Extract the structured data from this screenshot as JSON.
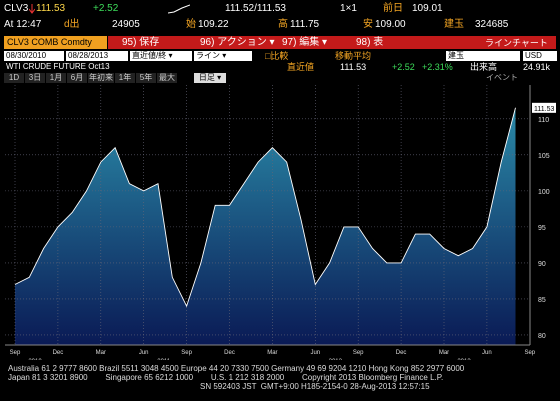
{
  "header": {
    "ticker": "CLV3",
    "last": "111.53",
    "change": "+2.52",
    "bid_ask": "111.52/111.53",
    "size": "1×1",
    "prev_label": "前日",
    "prev": "109.01",
    "time": "At 12:47",
    "vol_label": "d出",
    "volume": "24905",
    "open_label": "始",
    "open": "109.22",
    "high_label": "高",
    "high": "111.75",
    "low_label": "安",
    "low": "109.00",
    "oi_label": "建玉",
    "oi": "324685"
  },
  "toolbar": {
    "security": "CLV3 COMB Comdty",
    "menu": [
      "95) 保存",
      "96) アクション ▾",
      "97) 編集 ▾",
      "98) 表"
    ],
    "chart_kind": "ラインチャート"
  },
  "controls": {
    "start": "08/30/2010",
    "end": "08/28/2013",
    "field": "直近値/終 ▾",
    "style": "ライン ▾",
    "compare": "□比較",
    "ma": "移動平均",
    "oi": "建玉",
    "currency": "USD"
  },
  "legend": {
    "name": "WTI CRUDE FUTURE Oct13",
    "field": "直近値",
    "last": "111.53",
    "change": "+2.52",
    "pct": "+2.31%",
    "vol_label": "出来高",
    "vol": "24.91k"
  },
  "periods": {
    "buttons": [
      "1D",
      "3日",
      "1月",
      "6月",
      "年初来",
      "1年",
      "5年",
      "最大"
    ],
    "freq": "日足 ▾",
    "events": "イベント"
  },
  "chart_data": {
    "type": "area",
    "x": [
      "2010-09",
      "2010-10",
      "2010-11",
      "2010-12",
      "2011-01",
      "2011-02",
      "2011-03",
      "2011-04",
      "2011-05",
      "2011-06",
      "2011-07",
      "2011-08",
      "2011-09",
      "2011-10",
      "2011-11",
      "2011-12",
      "2012-01",
      "2012-02",
      "2012-03",
      "2012-04",
      "2012-05",
      "2012-06",
      "2012-07",
      "2012-08",
      "2012-09",
      "2012-10",
      "2012-11",
      "2012-12",
      "2013-01",
      "2013-02",
      "2013-03",
      "2013-04",
      "2013-05",
      "2013-06",
      "2013-07",
      "2013-08"
    ],
    "series": [
      {
        "name": "WTI CRUDE FUTURE Oct13",
        "color": "#ffffff",
        "values": [
          87,
          88,
          92,
          95,
          97,
          100,
          104,
          106,
          101,
          100,
          101,
          88,
          84,
          90,
          98,
          98,
          101,
          104,
          106,
          104,
          96,
          87,
          90,
          95,
          95,
          92,
          90,
          90,
          94,
          94,
          92,
          91,
          92,
          95,
          104,
          111.53
        ]
      }
    ],
    "ylim": [
      78.6,
      114.7
    ],
    "yticks": [
      80,
      85,
      90,
      95,
      100,
      105,
      110
    ],
    "grid": true,
    "xticks": [
      {
        "value": "2010-09",
        "label": "Sep"
      },
      {
        "value": "2010-12",
        "label": "Dec"
      },
      {
        "value": "2011-03",
        "label": "Mar"
      },
      {
        "value": "2011-06",
        "label": "Jun"
      },
      {
        "value": "2011-09",
        "label": "Sep"
      },
      {
        "value": "2011-12",
        "label": "Dec"
      },
      {
        "value": "2012-03",
        "label": "Mar"
      },
      {
        "value": "2012-06",
        "label": "Jun"
      },
      {
        "value": "2012-09",
        "label": "Sep"
      },
      {
        "value": "2012-12",
        "label": "Dec"
      },
      {
        "value": "2013-03",
        "label": "Mar"
      },
      {
        "value": "2013-06",
        "label": "Jun"
      },
      {
        "value": "2013-09",
        "label": "Sep"
      }
    ],
    "years": [
      {
        "value": "2010-09",
        "label": "2010"
      },
      {
        "value": "2011-06",
        "label": "2011"
      },
      {
        "value": "2012-06",
        "label": "2012"
      },
      {
        "value": "2013-03",
        "label": "2013"
      }
    ]
  },
  "footer": [
    "Australia 61 2 9777 8600 Brazil 5511 3048 4500 Europe 44 20 7330 7500 Germany 49 69 9204 1210 Hong Kong 852 2977 6000",
    "Japan 81 3 3201 8900        Singapore 65 6212 1000        U.S. 1 212 318 2000        Copyright 2013 Bloomberg Finance L.P.",
    "SN 592403 JST  GMT+9:00 H185-2154-0 28-Aug-2013 12:57:15"
  ]
}
